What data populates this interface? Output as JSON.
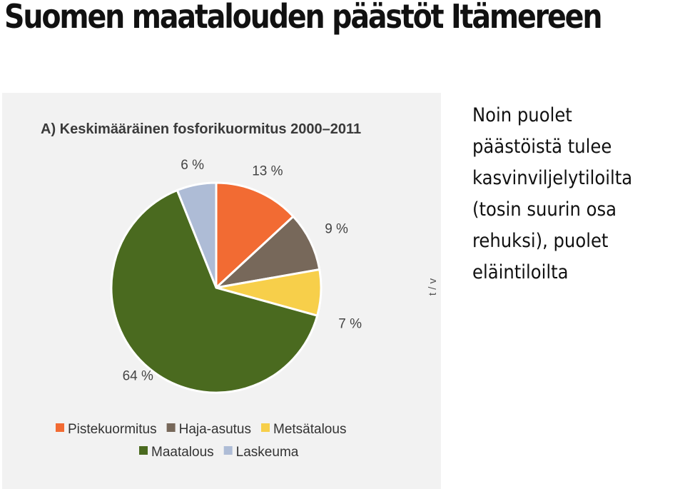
{
  "slide": {
    "title": "Suomen maatalouden päästöt Itämereen",
    "note_lines": [
      "Noin puolet",
      "päästöistä tulee",
      "kasvinviljelytiloilta",
      "(tosin suurin osa",
      "rehuksi), puolet",
      "eläintiloilta"
    ]
  },
  "cut_axis_label": "t / v",
  "chart_data": {
    "type": "pie",
    "title": "A) Keskimääräinen fosforikuormitus 2000–2011",
    "slices": [
      {
        "name": "Pistekuormitus",
        "value": 13,
        "label": "13 %",
        "color": "#f26b33"
      },
      {
        "name": "Haja-asutus",
        "value": 9,
        "label": "9 %",
        "color": "#77685a"
      },
      {
        "name": "Metsätalous",
        "value": 7,
        "label": "7 %",
        "color": "#f7cf4a"
      },
      {
        "name": "Maatalous",
        "value": 64,
        "label": "64 %",
        "color": "#4a6a1f"
      },
      {
        "name": "Laskeuma",
        "value": 6,
        "label": "6 %",
        "color": "#aebcd6"
      }
    ],
    "legend": [
      [
        "Pistekuormitus",
        "Haja-asutus",
        "Metsätalous"
      ],
      [
        "Maatalous",
        "Laskeuma"
      ]
    ],
    "legend_position": "bottom"
  }
}
